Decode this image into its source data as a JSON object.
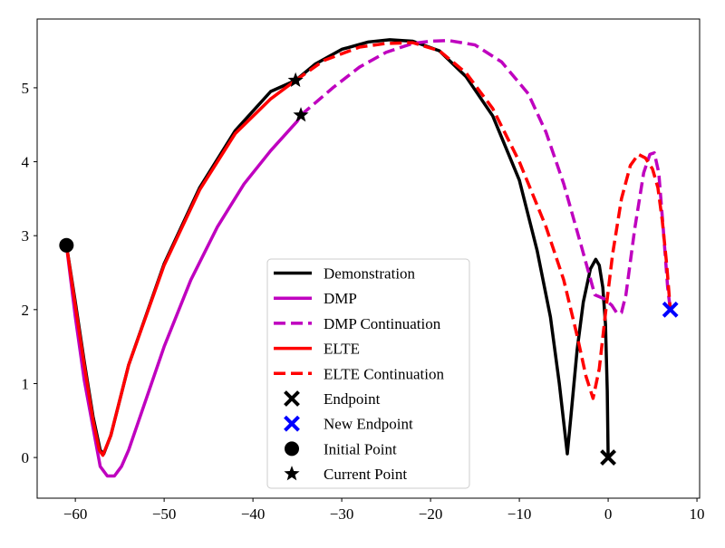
{
  "chart_data": {
    "type": "line",
    "title": "",
    "xlabel": "",
    "ylabel": "",
    "xlim": [
      -64.3,
      10.3
    ],
    "ylim": [
      -0.55,
      5.93
    ],
    "xticks": [
      -60,
      -50,
      -40,
      -30,
      -20,
      -10,
      0,
      10
    ],
    "xtick_labels": [
      "−60",
      "−50",
      "−40",
      "−30",
      "−20",
      "−10",
      "0",
      "10"
    ],
    "yticks": [
      0,
      1,
      2,
      3,
      4,
      5
    ],
    "ytick_labels": [
      "0",
      "1",
      "2",
      "3",
      "4",
      "5"
    ],
    "grid": false,
    "legend_position": "lower center",
    "series": [
      {
        "name": "Demonstration",
        "color": "#000000",
        "style": "solid",
        "x": [
          -61.0,
          -60.0,
          -59.0,
          -58.0,
          -57.2,
          -56.8,
          -56.0,
          -54.0,
          -50.0,
          -46.0,
          -42.0,
          -38.0,
          -35.2,
          -33.0,
          -30.0,
          -27.0,
          -24.6,
          -22.0,
          -19.0,
          -16.0,
          -13.0,
          -10.0,
          -8.0,
          -6.5,
          -5.5,
          -4.6,
          -4.2,
          -3.5,
          -2.8,
          -2.0,
          -1.4,
          -1.0,
          -0.6,
          -0.3,
          -0.1,
          0.0
        ],
        "y": [
          2.87,
          2.1,
          1.3,
          0.55,
          0.1,
          0.05,
          0.3,
          1.25,
          2.62,
          3.65,
          4.42,
          4.95,
          5.1,
          5.32,
          5.52,
          5.62,
          5.65,
          5.63,
          5.5,
          5.15,
          4.62,
          3.75,
          2.8,
          1.9,
          1.0,
          0.05,
          0.55,
          1.45,
          2.1,
          2.55,
          2.68,
          2.6,
          2.3,
          1.8,
          0.9,
          0.0
        ]
      },
      {
        "name": "DMP",
        "color": "#BF00BF",
        "style": "solid",
        "x": [
          -61.0,
          -60.0,
          -59.0,
          -58.0,
          -57.2,
          -56.4,
          -55.6,
          -54.8,
          -54.0,
          -52.0,
          -50.0,
          -47.0,
          -44.0,
          -41.0,
          -38.0,
          -35.0,
          -34.6
        ],
        "y": [
          2.87,
          1.9,
          1.05,
          0.4,
          -0.12,
          -0.25,
          -0.25,
          -0.12,
          0.1,
          0.8,
          1.5,
          2.4,
          3.12,
          3.7,
          4.15,
          4.55,
          4.63
        ]
      },
      {
        "name": "DMP Continuation",
        "color": "#BF00BF",
        "style": "dashed",
        "x": [
          -34.6,
          -31.0,
          -28.0,
          -25.0,
          -22.0,
          -20.0,
          -18.0,
          -15.0,
          -12.0,
          -9.0,
          -7.0,
          -5.0,
          -3.0,
          -1.5,
          -0.5,
          0.4,
          1.0,
          1.5,
          2.0,
          3.0,
          4.0,
          4.7,
          5.2,
          5.7,
          6.2,
          6.7,
          7.0
        ],
        "y": [
          4.63,
          5.0,
          5.28,
          5.48,
          5.6,
          5.63,
          5.64,
          5.58,
          5.35,
          4.92,
          4.4,
          3.7,
          2.85,
          2.2,
          2.15,
          2.06,
          1.95,
          1.96,
          2.2,
          3.1,
          3.85,
          4.1,
          4.12,
          3.85,
          3.1,
          2.3,
          2.0
        ]
      },
      {
        "name": "ELTE",
        "color": "#FF0000",
        "style": "solid",
        "x": [
          -61.0,
          -60.0,
          -59.0,
          -58.0,
          -57.3,
          -56.9,
          -56.0,
          -54.0,
          -50.0,
          -46.0,
          -42.0,
          -38.0,
          -35.2
        ],
        "y": [
          2.87,
          2.05,
          1.25,
          0.5,
          0.1,
          0.03,
          0.3,
          1.25,
          2.6,
          3.62,
          4.38,
          4.85,
          5.1
        ]
      },
      {
        "name": "ELTE Continuation",
        "color": "#FF0000",
        "style": "dashed",
        "x": [
          -35.2,
          -32.0,
          -28.0,
          -25.0,
          -22.0,
          -19.0,
          -16.0,
          -13.0,
          -10.0,
          -7.0,
          -5.0,
          -3.5,
          -2.5,
          -1.7,
          -1.0,
          -0.3,
          0.5,
          1.5,
          2.5,
          3.4,
          4.2,
          5.0,
          5.6,
          6.1,
          6.6,
          7.0
        ],
        "y": [
          5.1,
          5.37,
          5.55,
          5.6,
          5.61,
          5.5,
          5.2,
          4.72,
          4.0,
          3.12,
          2.4,
          1.65,
          1.1,
          0.8,
          1.2,
          1.95,
          2.75,
          3.5,
          3.95,
          4.1,
          4.05,
          3.9,
          3.65,
          3.2,
          2.6,
          2.0
        ]
      }
    ],
    "markers": [
      {
        "name": "Endpoint",
        "shape": "x",
        "color": "#000000",
        "x": 0.0,
        "y": 0.0
      },
      {
        "name": "New Endpoint",
        "shape": "x",
        "color": "#0000FF",
        "x": 7.0,
        "y": 2.0
      },
      {
        "name": "Initial Point",
        "shape": "circle",
        "color": "#000000",
        "x": -61.0,
        "y": 2.87
      },
      {
        "name": "Current Point",
        "shape": "star",
        "color": "#000000",
        "points": [
          {
            "x": -35.2,
            "y": 5.1
          },
          {
            "x": -34.6,
            "y": 4.63
          }
        ]
      }
    ],
    "legend": [
      {
        "label": "Demonstration",
        "kind": "line",
        "color": "#000000",
        "style": "solid"
      },
      {
        "label": "DMP",
        "kind": "line",
        "color": "#BF00BF",
        "style": "solid"
      },
      {
        "label": "DMP Continuation",
        "kind": "line",
        "color": "#BF00BF",
        "style": "dashed"
      },
      {
        "label": "ELTE",
        "kind": "line",
        "color": "#FF0000",
        "style": "solid"
      },
      {
        "label": "ELTE Continuation",
        "kind": "line",
        "color": "#FF0000",
        "style": "dashed"
      },
      {
        "label": "Endpoint",
        "kind": "x",
        "color": "#000000"
      },
      {
        "label": "New Endpoint",
        "kind": "x",
        "color": "#0000FF"
      },
      {
        "label": "Initial Point",
        "kind": "circle",
        "color": "#000000"
      },
      {
        "label": "Current Point",
        "kind": "star",
        "color": "#000000"
      }
    ]
  }
}
